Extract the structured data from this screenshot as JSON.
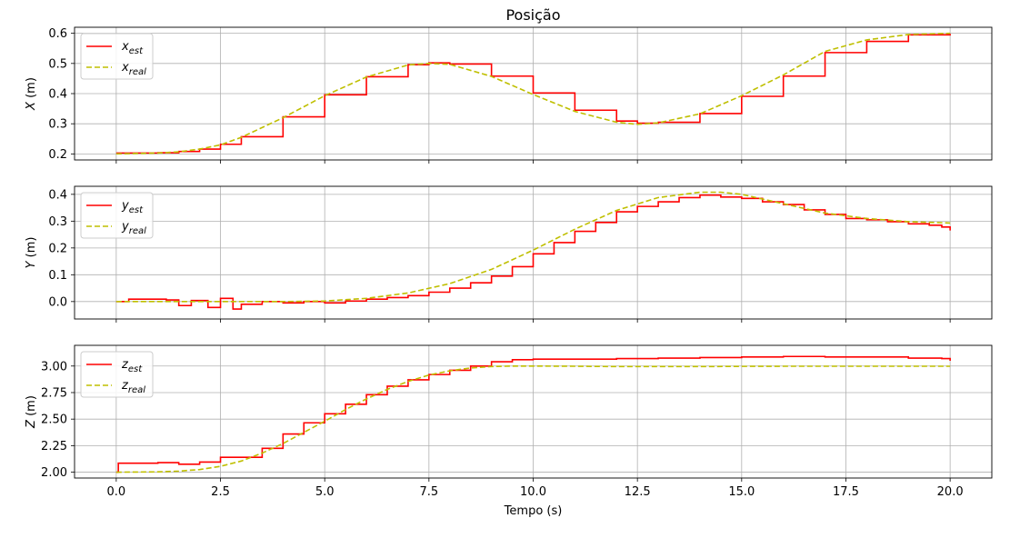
{
  "chart_data": {
    "type": "line",
    "title": "Posição",
    "xlabel": "Tempo (s)",
    "xlim": [
      -1.0,
      21.0
    ],
    "x_ticks": [
      0.0,
      2.5,
      5.0,
      7.5,
      10.0,
      12.5,
      15.0,
      17.5,
      20.0
    ],
    "x_tick_labels": [
      "0.0",
      "2.5",
      "5.0",
      "7.5",
      "10.0",
      "12.5",
      "15.0",
      "17.5",
      "20.0"
    ],
    "grid": true,
    "legend_position": "upper-left",
    "colors": {
      "est": "#ff0000",
      "real": "#bfbf00"
    },
    "subplots": [
      {
        "ylabel": "X (m)",
        "ylabel_main": "X",
        "ylabel_unit": "(m)",
        "ylim": [
          0.18,
          0.62
        ],
        "y_ticks": [
          0.2,
          0.3,
          0.4,
          0.5,
          0.6
        ],
        "y_tick_labels": [
          "0.2",
          "0.3",
          "0.4",
          "0.5",
          "0.6"
        ],
        "series": [
          {
            "name": "x_est",
            "base": "x",
            "sub": "est",
            "style": "solid",
            "color": "#ff0000",
            "x": [
              0,
              1,
              1.5,
              2,
              2.5,
              3,
              4,
              5,
              6,
              7,
              7.5,
              8,
              9,
              10,
              11,
              12,
              12.5,
              13,
              14,
              15,
              16,
              17,
              18,
              19,
              20
            ],
            "y": [
              0.203,
              0.204,
              0.208,
              0.216,
              0.232,
              0.257,
              0.323,
              0.396,
              0.456,
              0.496,
              0.502,
              0.498,
              0.458,
              0.402,
              0.345,
              0.309,
              0.302,
              0.305,
              0.334,
              0.391,
              0.458,
              0.536,
              0.573,
              0.595,
              0.598
            ]
          },
          {
            "name": "x_real",
            "base": "x",
            "sub": "real",
            "style": "dashed",
            "color": "#bfbf00",
            "x": [
              0,
              1,
              1.5,
              2,
              2.5,
              3,
              4,
              5,
              6,
              7,
              7.5,
              8,
              9,
              10,
              11,
              12,
              12.5,
              13,
              14,
              15,
              16,
              17,
              18,
              19,
              20
            ],
            "y": [
              0.2,
              0.203,
              0.207,
              0.216,
              0.23,
              0.255,
              0.32,
              0.393,
              0.455,
              0.495,
              0.5,
              0.497,
              0.457,
              0.397,
              0.341,
              0.305,
              0.298,
              0.303,
              0.333,
              0.393,
              0.462,
              0.54,
              0.578,
              0.596,
              0.6
            ]
          }
        ]
      },
      {
        "ylabel": "Y (m)",
        "ylabel_main": "Y",
        "ylabel_unit": "(m)",
        "ylim": [
          -0.065,
          0.43
        ],
        "y_ticks": [
          0.0,
          0.1,
          0.2,
          0.3,
          0.4
        ],
        "y_tick_labels": [
          "0.0",
          "0.1",
          "0.2",
          "0.3",
          "0.4"
        ],
        "series": [
          {
            "name": "y_est",
            "base": "y",
            "sub": "est",
            "style": "solid",
            "color": "#ff0000",
            "x": [
              0,
              0.3,
              1.2,
              1.5,
              1.8,
              2.2,
              2.5,
              2.8,
              3.0,
              3.5,
              4.0,
              4.5,
              5.0,
              5.5,
              6.0,
              6.5,
              7.0,
              7.5,
              8.0,
              8.5,
              9.0,
              9.5,
              10.0,
              10.5,
              11.0,
              11.5,
              12.0,
              12.5,
              13.0,
              13.5,
              14.0,
              14.5,
              15.0,
              15.5,
              16.0,
              16.5,
              17.0,
              17.5,
              18.0,
              18.5,
              19.0,
              19.5,
              19.8,
              20.0
            ],
            "y": [
              0.0,
              0.009,
              0.006,
              -0.015,
              0.004,
              -0.022,
              0.012,
              -0.028,
              -0.01,
              0.0,
              -0.005,
              0.0,
              -0.005,
              0.002,
              0.009,
              0.015,
              0.022,
              0.035,
              0.05,
              0.07,
              0.095,
              0.13,
              0.178,
              0.22,
              0.262,
              0.295,
              0.335,
              0.355,
              0.372,
              0.388,
              0.397,
              0.39,
              0.385,
              0.372,
              0.362,
              0.342,
              0.325,
              0.31,
              0.305,
              0.298,
              0.29,
              0.285,
              0.278,
              0.265
            ]
          },
          {
            "name": "y_real",
            "base": "y",
            "sub": "real",
            "style": "dashed",
            "color": "#bfbf00",
            "x": [
              0,
              1,
              2,
              3,
              4,
              5,
              6,
              7,
              8,
              9,
              10,
              11,
              12,
              13,
              14,
              14.5,
              15,
              16,
              17,
              18,
              19,
              20
            ],
            "y": [
              0.0,
              0.0,
              0.0,
              0.0,
              0.0,
              0.002,
              0.012,
              0.032,
              0.067,
              0.12,
              0.192,
              0.27,
              0.34,
              0.388,
              0.408,
              0.408,
              0.4,
              0.365,
              0.33,
              0.31,
              0.298,
              0.293
            ]
          }
        ]
      },
      {
        "ylabel": "Z (m)",
        "ylabel_main": "Z",
        "ylabel_unit": "(m)",
        "ylim": [
          1.945,
          3.195
        ],
        "y_ticks": [
          2.0,
          2.25,
          2.5,
          2.75,
          3.0
        ],
        "y_tick_labels": [
          "2.00",
          "2.25",
          "2.50",
          "2.75",
          "3.00"
        ],
        "series": [
          {
            "name": "z_est",
            "base": "z",
            "sub": "est",
            "style": "solid",
            "color": "#ff0000",
            "x": [
              0,
              0.05,
              1.0,
              1.5,
              2.0,
              2.5,
              3.0,
              3.5,
              4.0,
              4.5,
              5.0,
              5.5,
              6.0,
              6.5,
              7.0,
              7.5,
              8.0,
              8.5,
              9.0,
              9.5,
              10.0,
              10.5,
              11.0,
              12.0,
              13.0,
              14.0,
              15.0,
              16.0,
              17.0,
              18.0,
              19.0,
              19.8,
              20.0
            ],
            "y": [
              2.0,
              2.085,
              2.09,
              2.075,
              2.095,
              2.14,
              2.14,
              2.225,
              2.36,
              2.465,
              2.55,
              2.64,
              2.73,
              2.81,
              2.87,
              2.92,
              2.96,
              3.0,
              3.04,
              3.06,
              3.065,
              3.065,
              3.065,
              3.07,
              3.075,
              3.08,
              3.085,
              3.09,
              3.085,
              3.085,
              3.075,
              3.07,
              3.05
            ]
          },
          {
            "name": "z_real",
            "base": "z",
            "sub": "real",
            "style": "dashed",
            "color": "#bfbf00",
            "x": [
              0,
              1,
              1.5,
              2,
              2.5,
              3,
              3.5,
              4,
              4.5,
              5,
              5.5,
              6,
              6.5,
              7,
              7.5,
              8,
              8.5,
              9,
              9.5,
              10,
              11,
              12,
              13,
              14,
              15,
              16,
              17,
              18,
              19,
              20
            ],
            "y": [
              2.0,
              2.003,
              2.01,
              2.025,
              2.055,
              2.105,
              2.18,
              2.27,
              2.375,
              2.48,
              2.59,
              2.69,
              2.78,
              2.855,
              2.915,
              2.955,
              2.982,
              2.995,
              3.0,
              3.0,
              2.998,
              2.995,
              2.995,
              2.995,
              2.997,
              2.998,
              2.998,
              2.998,
              2.998,
              2.998
            ]
          }
        ]
      }
    ]
  }
}
